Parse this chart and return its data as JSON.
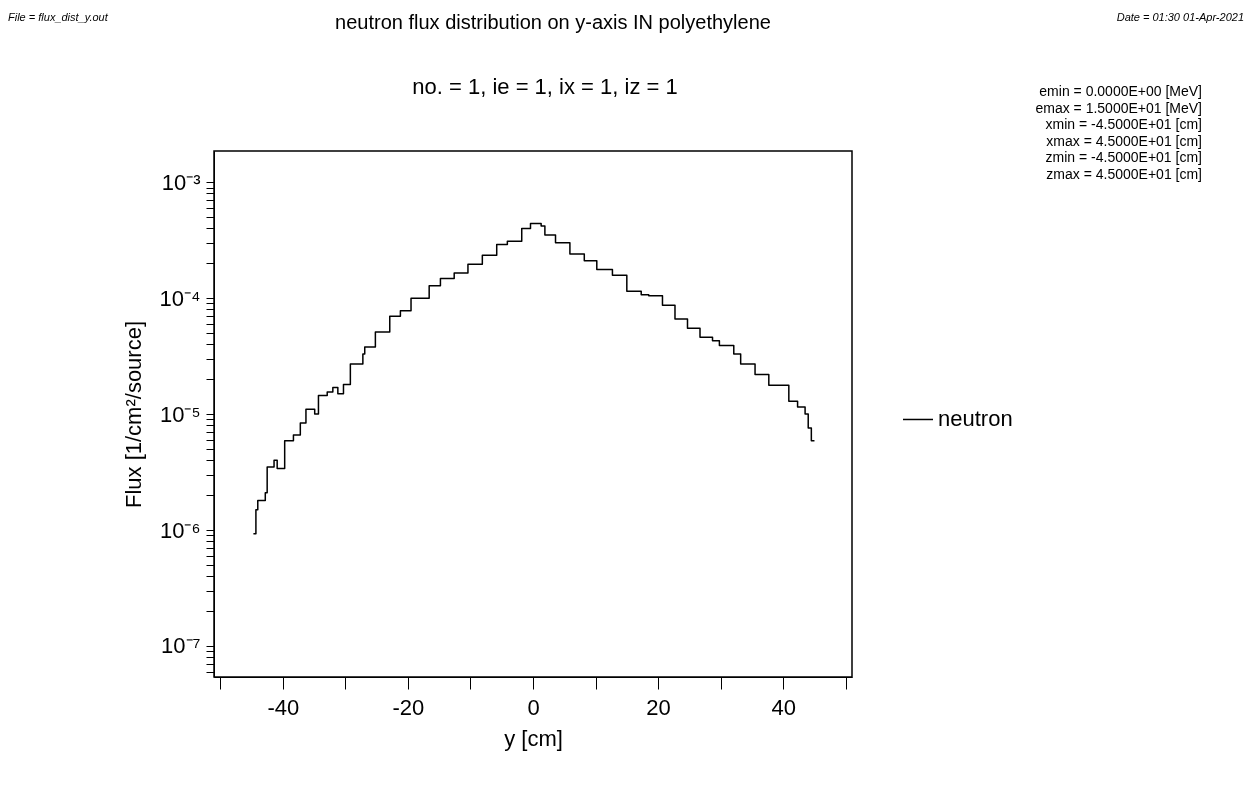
{
  "chart_data": {
    "type": "step",
    "title": "neutron flux distribution on y-axis IN polyethylene",
    "subtitle": "no. =  1,  ie =  1,  ix =  1,  iz =  1",
    "xlabel": "y [cm]",
    "ylabel": "Flux [1/cm²/source]",
    "annotations": [
      "File = flux_dist_y.out",
      "Date = 01:30 01-Apr-2021",
      "emin =   0.0000E+00 [MeV]",
      "emax =   1.5000E+01 [MeV]",
      "xmin =  -4.5000E+01 [cm]",
      "xmax =   4.5000E+01 [cm]",
      "zmin =  -4.5000E+01 [cm]",
      "zmax =   4.5000E+01 [cm]"
    ],
    "log": "y",
    "grid": false,
    "legend": "right",
    "line_style": "solid",
    "marker": "none",
    "xlim": [
      -51,
      51
    ],
    "xticks": [
      {
        "value": -50,
        "label": null
      },
      -40,
      {
        "value": -30,
        "label": null
      },
      -20,
      {
        "value": -10,
        "label": null
      },
      0,
      {
        "value": 10,
        "label": null
      },
      20,
      {
        "value": 30,
        "label": null
      },
      40,
      {
        "value": 50,
        "label": null
      }
    ],
    "ylim": [
      5.4e-08,
      0.00186
    ],
    "yticks": [
      {
        "value": 6e-08,
        "label": null
      },
      {
        "value": 7e-08,
        "label": null
      },
      {
        "value": 8e-08,
        "label": null
      },
      {
        "value": 9e-08,
        "label": null
      },
      {
        "value": 1e-07,
        "label": "10⁻⁷"
      },
      {
        "value": 2e-07,
        "label": null
      },
      {
        "value": 3e-07,
        "label": null
      },
      {
        "value": 4e-07,
        "label": null
      },
      {
        "value": 5e-07,
        "label": null
      },
      {
        "value": 6e-07,
        "label": null
      },
      {
        "value": 7e-07,
        "label": null
      },
      {
        "value": 8e-07,
        "label": null
      },
      {
        "value": 9e-07,
        "label": null
      },
      {
        "value": 1e-06,
        "label": "10⁻⁶"
      },
      {
        "value": 2e-06,
        "label": null
      },
      {
        "value": 3e-06,
        "label": null
      },
      {
        "value": 4e-06,
        "label": null
      },
      {
        "value": 5e-06,
        "label": null
      },
      {
        "value": 6e-06,
        "label": null
      },
      {
        "value": 7e-06,
        "label": null
      },
      {
        "value": 8e-06,
        "label": null
      },
      {
        "value": 9e-06,
        "label": null
      },
      {
        "value": 1e-05,
        "label": "10⁻⁵"
      },
      {
        "value": 2e-05,
        "label": null
      },
      {
        "value": 3e-05,
        "label": null
      },
      {
        "value": 4e-05,
        "label": null
      },
      {
        "value": 5e-05,
        "label": null
      },
      {
        "value": 6e-05,
        "label": null
      },
      {
        "value": 7e-05,
        "label": null
      },
      {
        "value": 8e-05,
        "label": null
      },
      {
        "value": 9e-05,
        "label": null
      },
      {
        "value": 0.0001,
        "label": "10⁻⁴"
      },
      {
        "value": 0.0002,
        "label": null
      },
      {
        "value": 0.0003,
        "label": null
      },
      {
        "value": 0.0004,
        "label": null
      },
      {
        "value": 0.0005,
        "label": null
      },
      {
        "value": 0.0006,
        "label": null
      },
      {
        "value": 0.0007,
        "label": null
      },
      {
        "value": 0.0008,
        "label": null
      },
      {
        "value": 0.0009,
        "label": null
      },
      {
        "value": 0.001,
        "label": "10⁻³"
      }
    ],
    "series": [
      {
        "name": "neutron",
        "color": "#000000",
        "x": [
          -44.7,
          -44.3,
          -44.0,
          -42.8,
          -42.5,
          -41.4,
          -40.9,
          -39.7,
          -38.3,
          -37.2,
          -36.3,
          -34.9,
          -34.3,
          -32.9,
          -32.0,
          -31.2,
          -30.3,
          -29.2,
          -27.2,
          -26.9,
          -25.2,
          -22.9,
          -21.2,
          -19.5,
          -16.6,
          -14.8,
          -12.6,
          -10.4,
          -8.1,
          -5.8,
          -4.1,
          -1.8,
          -0.4,
          0.0,
          1.3,
          1.9,
          3.6,
          5.9,
          8.2,
          10.2,
          12.7,
          15.0,
          17.3,
          18.5,
          20.7,
          22.7,
          24.7,
          26.7,
          28.7,
          29.8,
          32.1,
          33.2,
          35.5,
          37.7,
          40.3,
          40.9,
          42.3,
          43.5,
          44.0,
          44.5,
          45.0
        ],
        "values": [
          9.3e-07,
          1.5e-06,
          1.8e-06,
          2.1e-06,
          3.5e-06,
          4e-06,
          3.4e-06,
          5.9e-06,
          6.6e-06,
          8.4e-06,
          1.1e-05,
          1e-05,
          1.45e-05,
          1.55e-05,
          1.7e-05,
          1.5e-05,
          1.8e-05,
          2.7e-05,
          3.3e-05,
          3.8e-05,
          5.1e-05,
          7e-05,
          7.8e-05,
          0.0001,
          0.000128,
          0.000148,
          0.000165,
          0.000196,
          0.000234,
          0.00029,
          0.00031,
          0.0004,
          0.00044,
          0.00044,
          0.00042,
          0.00035,
          0.0003,
          0.00024,
          0.00021,
          0.000177,
          0.000158,
          0.000115,
          0.000107,
          0.000105,
          8.7e-05,
          6.6e-05,
          5.5e-05,
          4.6e-05,
          4.3e-05,
          3.9e-05,
          3.3e-05,
          2.7e-05,
          2.2e-05,
          1.77e-05,
          1.77e-05,
          1.29e-05,
          1.15e-05,
          1e-05,
          7.6e-06,
          5.9e-06,
          5.9e-06
        ]
      }
    ]
  }
}
